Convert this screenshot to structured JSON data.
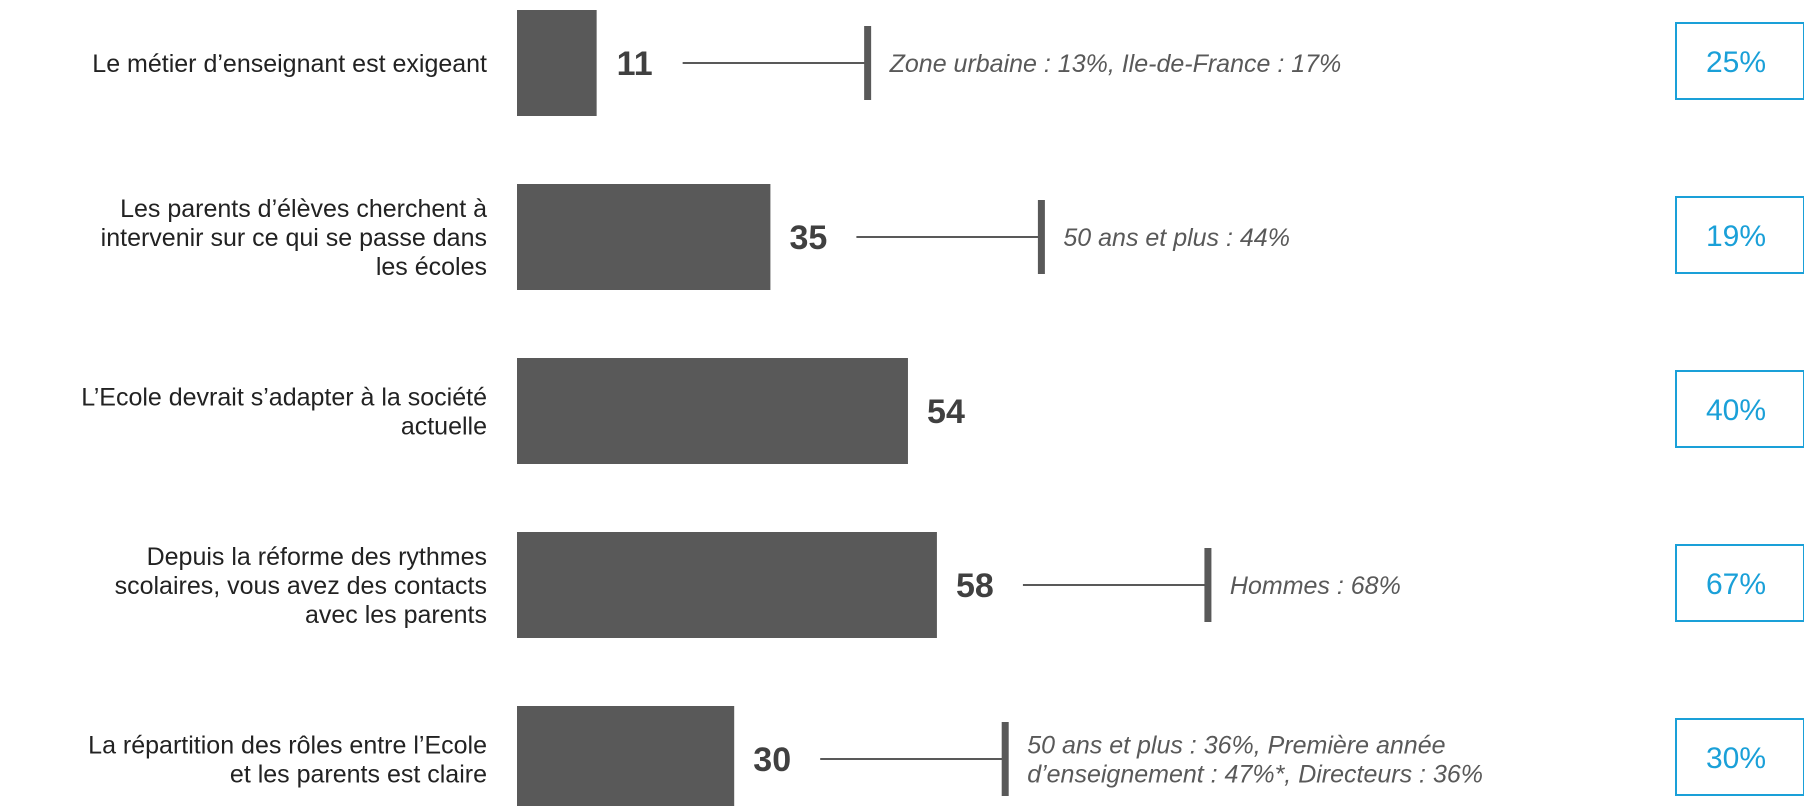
{
  "colors": {
    "bar": "#595959",
    "connector": "#595959",
    "right_box_border": "#1AA0D8",
    "right_box_text": "#1AA0D8"
  },
  "chart_data": {
    "type": "bar",
    "orientation": "horizontal",
    "categories": [
      [
        "Le métier d’enseignant est exigeant"
      ],
      [
        "Les parents d’élèves cherchent à",
        "intervenir sur ce qui se passe dans",
        "les écoles"
      ],
      [
        "L’Ecole devrait s’adapter à la société",
        "actuelle"
      ],
      [
        "Depuis la réforme des rythmes",
        "scolaires, vous avez des contacts",
        "avec les parents"
      ],
      [
        "La répartition des rôles entre l’Ecole",
        "et les parents est claire"
      ]
    ],
    "values": [
      11,
      35,
      54,
      58,
      30
    ],
    "annotations": [
      [
        "Zone urbaine : 13%, Ile-de-France : 17%"
      ],
      [
        "50 ans et plus : 44%"
      ],
      [],
      [
        "Hommes : 68%"
      ],
      [
        "50 ans et plus : 36%, Première année",
        "d’enseignement : 47%*, Directeurs : 36%"
      ]
    ],
    "right_values": [
      "25%",
      "19%",
      "40%",
      "67%",
      "30%"
    ],
    "xlim": [
      0,
      100
    ],
    "grid": false,
    "legend": "none"
  }
}
